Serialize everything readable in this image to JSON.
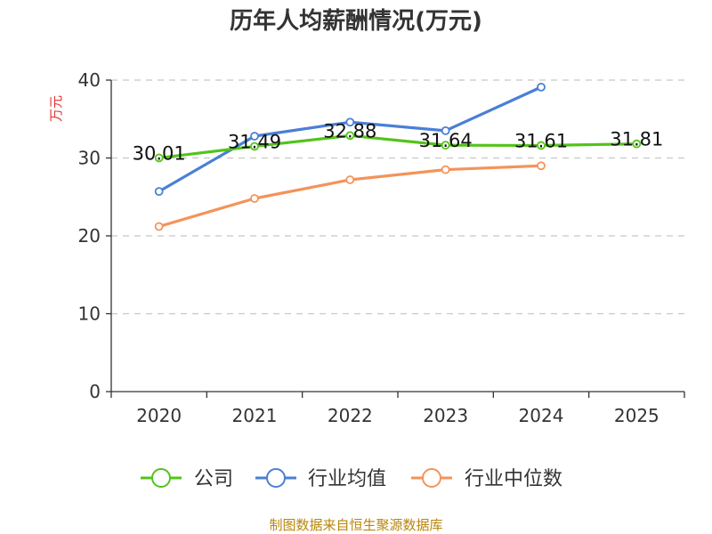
{
  "chart_data": {
    "type": "line",
    "title": "历年人均薪酬情况(万元)",
    "ylabel": "万元",
    "xlabel": "",
    "categories": [
      "2020",
      "2021",
      "2022",
      "2023",
      "2024",
      "2025"
    ],
    "ylim": [
      0,
      40
    ],
    "yticks": [
      0,
      10,
      20,
      30,
      40
    ],
    "grid": true,
    "legend_position": "bottom",
    "series": [
      {
        "name": "公司",
        "color": "#52c41a",
        "values": [
          30.01,
          31.49,
          32.88,
          31.64,
          31.61,
          31.81
        ],
        "labels": [
          "30.01",
          "31.49",
          "32.88",
          "31.64",
          "31.61",
          "31.81"
        ]
      },
      {
        "name": "行业均值",
        "color": "#4a7fd6",
        "values": [
          25.7,
          32.8,
          34.6,
          33.5,
          39.1,
          null
        ]
      },
      {
        "name": "行业中位数",
        "color": "#f4935a",
        "values": [
          21.2,
          24.8,
          27.2,
          28.5,
          29.0,
          null
        ]
      }
    ]
  },
  "source": "制图数据来自恒生聚源数据库"
}
